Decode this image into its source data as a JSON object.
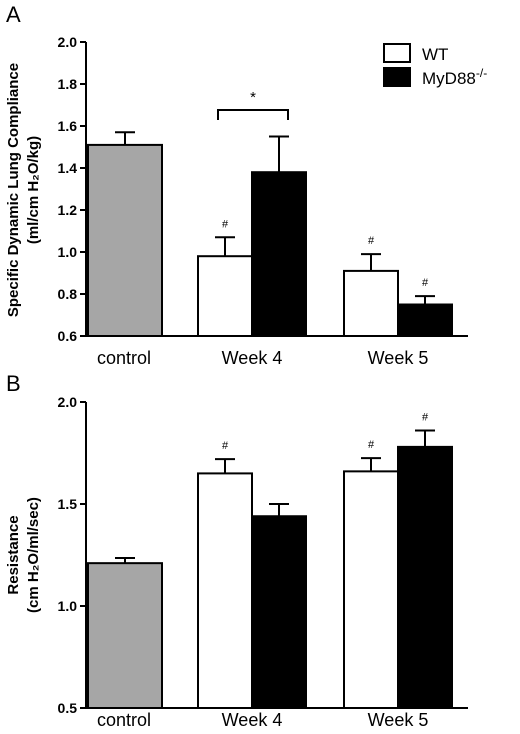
{
  "chart_data": [
    {
      "panel": "A",
      "type": "bar",
      "ylabel_lines": [
        "Specific Dynamic Lung Compliance",
        "(ml/cm H₂O/kg)"
      ],
      "ylim": [
        0.6,
        2.0
      ],
      "yticks": [
        "0.6",
        "0.8",
        "1.0",
        "1.2",
        "1.4",
        "1.6",
        "1.8",
        "2.0"
      ],
      "categories": [
        "control",
        "Week 4",
        "Week 5"
      ],
      "bars": [
        {
          "group": "control",
          "series": "control",
          "value": 1.51,
          "err": 0.06,
          "color": "#a6a6a6"
        },
        {
          "group": "Week 4",
          "series": "WT",
          "value": 0.98,
          "err": 0.09,
          "color": "#ffffff",
          "mark": "#"
        },
        {
          "group": "Week 4",
          "series": "MyD88-/-",
          "value": 1.38,
          "err": 0.17,
          "color": "#000000"
        },
        {
          "group": "Week 5",
          "series": "WT",
          "value": 0.91,
          "err": 0.08,
          "color": "#ffffff",
          "mark": "#"
        },
        {
          "group": "Week 5",
          "series": "MyD88-/-",
          "value": 0.75,
          "err": 0.04,
          "color": "#000000",
          "mark": "#"
        }
      ],
      "bracket": {
        "between": [
          "Week 4 WT",
          "Week 4 MyD88-/-"
        ],
        "label": "*"
      },
      "legend": [
        {
          "label": "WT",
          "superscript": "",
          "color": "#ffffff"
        },
        {
          "label": "MyD88",
          "superscript": "-/-",
          "color": "#000000"
        }
      ],
      "legend_position": "top-right",
      "grid": false
    },
    {
      "panel": "B",
      "type": "bar",
      "ylabel_lines": [
        "Resistance",
        "(cm H₂O/ml/sec)"
      ],
      "ylim": [
        0.5,
        2.0
      ],
      "yticks": [
        "0.5",
        "1.0",
        "1.5",
        "2.0"
      ],
      "categories": [
        "control",
        "Week 4",
        "Week 5"
      ],
      "bars": [
        {
          "group": "control",
          "series": "control",
          "value": 1.21,
          "err": 0.025,
          "color": "#a6a6a6"
        },
        {
          "group": "Week 4",
          "series": "WT",
          "value": 1.65,
          "err": 0.07,
          "color": "#ffffff",
          "mark": "#"
        },
        {
          "group": "Week 4",
          "series": "MyD88-/-",
          "value": 1.44,
          "err": 0.06,
          "color": "#000000"
        },
        {
          "group": "Week 5",
          "series": "WT",
          "value": 1.66,
          "err": 0.065,
          "color": "#ffffff",
          "mark": "#"
        },
        {
          "group": "Week 5",
          "series": "MyD88-/-",
          "value": 1.78,
          "err": 0.08,
          "color": "#000000",
          "mark": "#"
        }
      ],
      "grid": false
    }
  ]
}
